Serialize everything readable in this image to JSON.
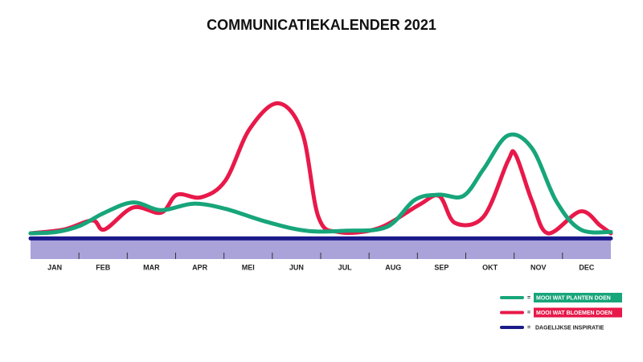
{
  "chart_data": {
    "type": "line",
    "title": "COMMUNICATIEKALENDER 2021",
    "categories": [
      "JAN",
      "FEB",
      "MAR",
      "APR",
      "MEI",
      "JUN",
      "JUL",
      "AUG",
      "SEP",
      "OKT",
      "NOV",
      "DEC"
    ],
    "xlim": [
      0,
      12
    ],
    "ylim": [
      -5,
      110
    ],
    "legend_separator": "=",
    "series": [
      {
        "name": "MOOI WAT PLANTEN DOEN",
        "color": "#17a57a",
        "x": [
          0,
          0.53,
          1.03,
          1.53,
          2.12,
          2.7,
          3.37,
          4.03,
          4.87,
          5.7,
          6.53,
          7.37,
          7.95,
          8.45,
          8.95,
          9.37,
          9.87,
          10.37,
          10.87,
          11.37,
          12
        ],
        "values": [
          0,
          1,
          6,
          16,
          24,
          18,
          23,
          19,
          9,
          2,
          2,
          5,
          26,
          30,
          29,
          50,
          76,
          66,
          25,
          3,
          1
        ]
      },
      {
        "name": "MOOI WAT BLOEMEN DOEN",
        "color": "#e8194a",
        "x": [
          0,
          0.7,
          1.28,
          1.53,
          2.12,
          2.7,
          3.03,
          3.53,
          4.03,
          4.53,
          5.12,
          5.62,
          5.95,
          6.37,
          7.2,
          8.03,
          8.45,
          8.78,
          9.37,
          9.87,
          10.03,
          10.37,
          10.7,
          11.37,
          11.78,
          12
        ],
        "values": [
          0,
          3,
          10,
          3,
          20,
          16,
          30,
          28,
          41,
          81,
          101,
          78,
          13,
          1,
          4,
          22,
          29,
          8,
          13,
          56,
          61,
          25,
          0,
          17,
          6,
          0
        ]
      },
      {
        "name": "DAGELIJKSE INSPIRATIE",
        "color": "#1b1a8a",
        "x": [
          0,
          12
        ],
        "values": [
          -4,
          -4
        ]
      }
    ]
  }
}
